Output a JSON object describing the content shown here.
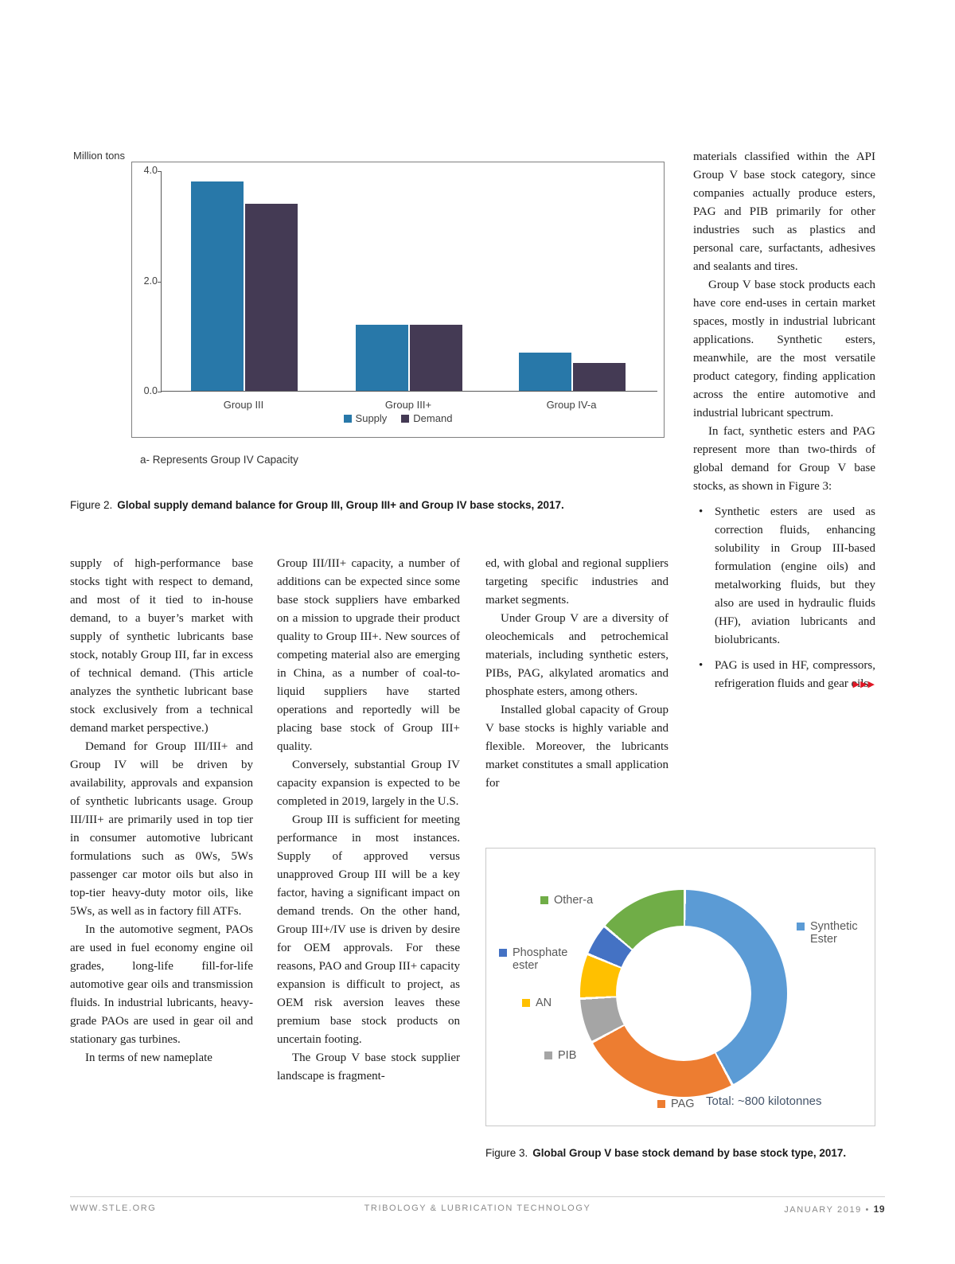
{
  "bullet_char": "•",
  "arrows": "▶▶▶",
  "figure2": {
    "note": "a- Represents Group IV Capacity",
    "caption_label": "Figure 2.",
    "caption_text": "Global supply demand balance for Group III, Group III+ and Group IV base stocks, 2017."
  },
  "figure3": {
    "caption_label": "Figure 3.",
    "caption_text": "Global Group V base stock demand by base stock type, 2017.",
    "total_label": "Total: ~800 kilotonnes"
  },
  "chart_data": [
    {
      "type": "bar",
      "title": "",
      "categories": [
        "Group III",
        "Group III+",
        "Group IV-a"
      ],
      "series": [
        {
          "name": "Supply",
          "color": "#2878a9",
          "values": [
            3.8,
            1.2,
            0.7
          ]
        },
        {
          "name": "Demand",
          "color": "#443a54",
          "values": [
            3.4,
            1.2,
            0.5
          ]
        }
      ],
      "xlabel": "",
      "ylabel": "Million tons",
      "ylim": [
        0,
        4.0
      ],
      "yticks": [
        0.0,
        2.0,
        4.0
      ],
      "grid": false,
      "legend_position": "bottom",
      "note": "a- Represents Group IV Capacity"
    },
    {
      "type": "pie",
      "subtype": "donut",
      "title": "",
      "total_label": "Total: ~800 kilotonnes",
      "units": "percent share of ~800 kilotonnes",
      "slices": [
        {
          "label": "Synthetic Ester",
          "value": 42,
          "color": "#5b9bd5"
        },
        {
          "label": "PAG",
          "value": 25,
          "color": "#ed7d31"
        },
        {
          "label": "PIB",
          "value": 7,
          "color": "#a5a5a5"
        },
        {
          "label": "AN",
          "value": 7,
          "color": "#ffc000"
        },
        {
          "label": "Phosphate ester",
          "value": 5,
          "color": "#4472c4"
        },
        {
          "label": "Other-a",
          "value": 14,
          "color": "#70ad47"
        }
      ]
    }
  ],
  "columns": {
    "col1": [
      {
        "text": "supply of high-performance base stocks tight with respect to demand, and most of it tied to in-house demand, to a buyer’s market with supply of synthetic lubricants base stock, notably Group III, far in excess of technical demand. (This article analyzes the synthetic lubricant base stock exclusively from a technical demand market perspective.)",
        "indent": false
      },
      {
        "text": "Demand for Group III/III+ and Group IV will be driven by availability, approvals and expansion of synthetic lubricants usage. Group III/III+ are primarily used in top tier in consumer automotive lubricant formulations such as 0Ws, 5Ws passenger car motor oils but also in top-tier heavy-duty motor oils, like 5Ws, as well as in factory fill ATFs.",
        "indent": true
      },
      {
        "text": "In the automotive segment, PAOs are used in fuel economy engine oil grades, long-life fill-for-life automotive gear oils and transmission fluids. In industrial lubricants, heavy-grade PAOs are used in gear oil and stationary gas turbines.",
        "indent": true
      },
      {
        "text": "In terms of new nameplate",
        "indent": true
      }
    ],
    "col2": [
      {
        "text": "Group III/III+ capacity, a number of additions can be expected since some base stock suppliers have embarked on a mission to upgrade their product quality to Group III+. New sources of competing material also are emerging in China, as a number of coal-to-liquid suppliers have started operations and reportedly will be placing base stock of Group III+ quality.",
        "indent": false
      },
      {
        "text": "Conversely, substantial Group IV capacity expansion is expected to be completed in 2019, largely in the U.S.",
        "indent": true
      },
      {
        "text": "Group III is sufficient for meeting performance in most instances. Supply of approved versus unapproved Group III will be a key factor, having a significant impact on demand trends. On the other hand, Group III+/IV use is driven by desire for OEM approvals. For these reasons, PAO and Group III+ capacity expansion is difficult to project, as OEM risk aversion leaves these premium base stock products on uncertain footing.",
        "indent": true
      },
      {
        "text": "The Group V base stock supplier landscape is fragment-",
        "indent": true
      }
    ],
    "col3": [
      {
        "text": "ed, with global and regional suppliers targeting specific industries and market segments.",
        "indent": false
      },
      {
        "text": "Under Group V are a diversity of oleochemicals and petrochemical materials, including synthetic esters, PIBs, PAG, alkylated aromatics and phosphate esters, among others.",
        "indent": true
      },
      {
        "text": "Installed global capacity of Group V base stocks is highly variable and flexible. Moreover, the lubricants market constitutes a small application for",
        "indent": true
      }
    ],
    "col4": [
      {
        "text": "materials classified within the API Group V base stock category, since companies actually produce esters, PAG and PIB primarily for other industries such as plastics and personal care, surfactants, adhesives and sealants and tires.",
        "indent": false
      },
      {
        "text": "Group V base stock products each have core end-uses in certain market spaces, mostly in industrial lubricant applications. Synthetic esters, meanwhile, are the most versatile product category, finding application across the entire automotive and industrial lubricant spectrum.",
        "indent": true
      },
      {
        "text": "In fact, synthetic esters and PAG represent more than two-thirds of global demand for Group V base stocks, as shown in Figure 3:",
        "indent": true
      },
      {
        "text": "Synthetic esters are used as correction fluids, enhancing solubility in Group III-based formulation (engine oils) and metalworking fluids, but they also are used in hydraulic fluids (HF), aviation lubricants and biolubricants.",
        "bullet": true
      },
      {
        "text": "PAG is used in HF, compressors, refrigeration fluids and gear oils.",
        "bullet": true,
        "arrows": true
      }
    ]
  },
  "footer": {
    "left": "WWW.STLE.ORG",
    "center": "TRIBOLOGY & LUBRICATION TECHNOLOGY",
    "right_date": "JANUARY 2019",
    "right_sep": "•",
    "right_page": "19"
  }
}
